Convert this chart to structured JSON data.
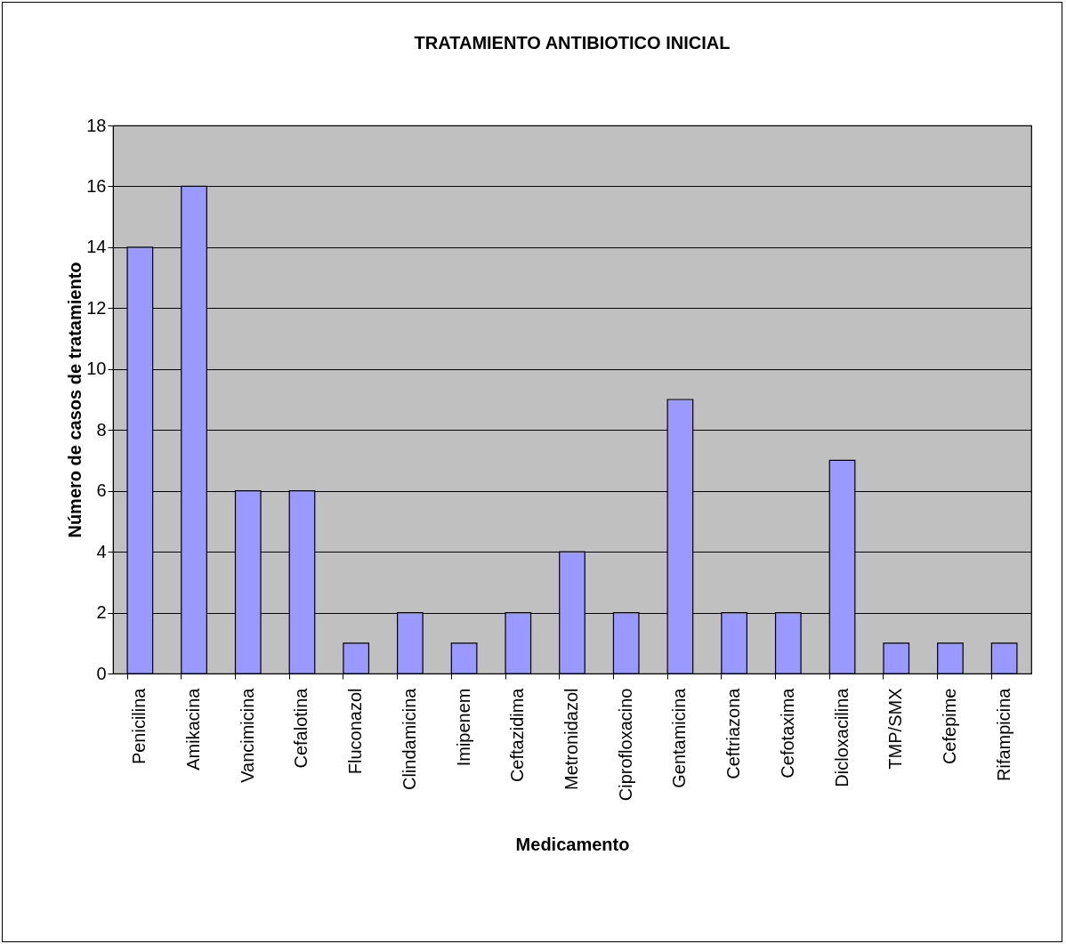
{
  "chart_data": {
    "type": "bar",
    "title": "TRATAMIENTO ANTIBIOTICO INICIAL",
    "xlabel": "Medicamento",
    "ylabel": "Número de casos de tratamiento",
    "categories": [
      "Penicilina",
      "Amikacina",
      "Vancimicina",
      "Cefalotina",
      "Fluconazol",
      "Clindamicina",
      "Imipenem",
      "Ceftazidima",
      "Metronidazol",
      "Ciprofloxacino",
      "Gentamicina",
      "Ceftriazona",
      "Cefotaxima",
      "Dicloxacilina",
      "TMP/SMX",
      "Cefepime",
      "Rifampicina"
    ],
    "values": [
      14,
      16,
      6,
      6,
      1,
      2,
      1,
      2,
      4,
      2,
      9,
      2,
      2,
      7,
      1,
      1,
      1
    ],
    "color": "#9999ff",
    "ylim": [
      0,
      18
    ],
    "yticks": [
      0,
      2,
      4,
      6,
      8,
      10,
      12,
      14,
      16,
      18
    ],
    "grid": "y"
  }
}
